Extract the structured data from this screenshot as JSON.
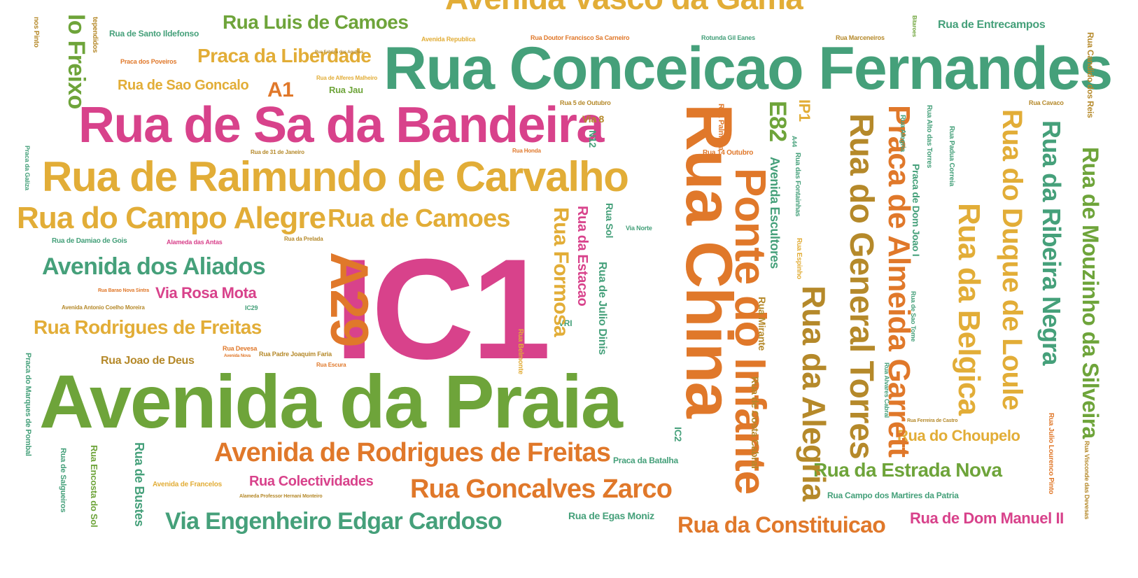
{
  "palette": {
    "green": "#45a07a",
    "lime": "#6ea43a",
    "pink": "#d8428b",
    "orange": "#e0782a",
    "yellow": "#e2ad37",
    "olive": "#b5892a"
  },
  "words": [
    {
      "text": "IC1",
      "color": "pink"
    },
    {
      "text": "Avenida da Praia",
      "color": "lime"
    },
    {
      "text": "Rua Conceicao Fernandes",
      "color": "green"
    },
    {
      "text": "Rua de Sa da Bandeira",
      "color": "pink"
    },
    {
      "text": "Rua de Raimundo de Carvalho",
      "color": "yellow"
    },
    {
      "text": "Rua do Campo Alegre",
      "color": "yellow"
    },
    {
      "text": "Rua de Camoes",
      "color": "yellow"
    },
    {
      "text": "Avenida dos Aliados",
      "color": "green"
    },
    {
      "text": "Rua Rodrigues de Freitas",
      "color": "yellow"
    },
    {
      "text": "Via Rosa Mota",
      "color": "pink"
    },
    {
      "text": "Avenida de Rodrigues de Freitas",
      "color": "orange"
    },
    {
      "text": "Rua Goncalves Zarco",
      "color": "orange"
    },
    {
      "text": "Via Engenheiro Edgar Cardoso",
      "color": "green"
    },
    {
      "text": "Rua Colectividades",
      "color": "pink"
    },
    {
      "text": "Praca da Liberdade",
      "color": "yellow"
    },
    {
      "text": "Rua Luis de Camoes",
      "color": "lime"
    },
    {
      "text": "Avenida Vasco da Gama",
      "color": "yellow"
    },
    {
      "text": "Rua de Sao Goncalo",
      "color": "yellow"
    },
    {
      "text": "A1",
      "color": "orange"
    },
    {
      "text": "Rua Jau",
      "color": "lime"
    },
    {
      "text": "Rua de Santo Ildefonso",
      "color": "green"
    },
    {
      "text": "Praca dos Poveiros",
      "color": "orange"
    },
    {
      "text": "Rua Joao de Deus",
      "color": "olive"
    },
    {
      "text": "Rua da Constituicao",
      "color": "orange"
    },
    {
      "text": "Rua de Egas Moniz",
      "color": "green"
    },
    {
      "text": "Praca da Batalha",
      "color": "green"
    },
    {
      "text": "Rua da Estrada Nova",
      "color": "lime"
    },
    {
      "text": "Rua Campo dos Martires da Patria",
      "color": "green"
    },
    {
      "text": "Rua de Dom Manuel II",
      "color": "pink"
    },
    {
      "text": "Rua do Choupelo",
      "color": "yellow"
    },
    {
      "text": "Rua de Entrecampos",
      "color": "green"
    },
    {
      "text": "Rua Marceneiros",
      "color": "olive"
    },
    {
      "text": "Rotunda Gil Eanes",
      "color": "green"
    },
    {
      "text": "Rua Doutor Francisco Sa Carneiro",
      "color": "orange"
    },
    {
      "text": "Alameda das Antas",
      "color": "pink"
    },
    {
      "text": "Rua de Damiao de Gois",
      "color": "green"
    },
    {
      "text": "Avenida de Francelos",
      "color": "yellow"
    },
    {
      "text": "Rua Devesa",
      "color": "orange"
    },
    {
      "text": "Rua Padre Joaquim Faria",
      "color": "olive"
    },
    {
      "text": "Via 8",
      "color": "olive"
    },
    {
      "text": "Rua 5 de Outubro",
      "color": "olive"
    },
    {
      "text": "Rua Cavaco",
      "color": "olive"
    },
    {
      "text": "Rua 14 Outubro",
      "color": "orange"
    },
    {
      "text": "Via Norte",
      "color": "green"
    },
    {
      "text": "VRI",
      "color": "green"
    },
    {
      "text": "IC29",
      "color": "green"
    },
    {
      "text": "Rua China",
      "color": "orange"
    },
    {
      "text": "Ponte do Infante",
      "color": "orange"
    },
    {
      "text": "Rua do General Torres",
      "color": "olive"
    },
    {
      "text": "Praca de Almeida Garrett",
      "color": "orange"
    },
    {
      "text": "Rua da Belgica",
      "color": "yellow"
    },
    {
      "text": "Rua do Duque de Loule",
      "color": "yellow"
    },
    {
      "text": "Rua da Ribeira Negra",
      "color": "green"
    },
    {
      "text": "Rua de Mouzinho da Silveira",
      "color": "lime"
    },
    {
      "text": "Rua da Alegria",
      "color": "olive"
    },
    {
      "text": "A29",
      "color": "orange"
    },
    {
      "text": "Rua Formosa",
      "color": "yellow"
    },
    {
      "text": "Rua da Estacao",
      "color": "pink"
    },
    {
      "text": "Rua de Julio Dinis",
      "color": "green"
    },
    {
      "text": "Rua Sol",
      "color": "green"
    },
    {
      "text": "Io Freixo",
      "color": "lime"
    },
    {
      "text": "E82",
      "color": "lime"
    },
    {
      "text": "IP1",
      "color": "yellow"
    },
    {
      "text": "Avenida Escultores",
      "color": "green"
    },
    {
      "text": "Rua de Costa Cabral",
      "color": "olive"
    },
    {
      "text": "Rua Mirante",
      "color": "olive"
    },
    {
      "text": "Praca de Dom Joao I",
      "color": "green"
    },
    {
      "text": "Rua Alegria",
      "color": "green"
    },
    {
      "text": "Rua Alto das Torres",
      "color": "green"
    },
    {
      "text": "Rua Padua Correia",
      "color": "green"
    },
    {
      "text": "Rua Palmeira",
      "color": "orange"
    },
    {
      "text": "Rua das Fontainhas",
      "color": "green"
    },
    {
      "text": "Rua Espinho",
      "color": "yellow"
    },
    {
      "text": "Rua de Busteѕ",
      "color": "green"
    },
    {
      "text": "Rua Encosta do Sol",
      "color": "lime"
    },
    {
      "text": "Rua de Salgueiros",
      "color": "green"
    },
    {
      "text": "Praca do Marques de Pombal",
      "color": "green"
    },
    {
      "text": "Praca da Galiza",
      "color": "green"
    },
    {
      "text": "Rua Candido dos Reis",
      "color": "olive"
    },
    {
      "text": "Rua Julio Lourenco Pinto",
      "color": "orange"
    },
    {
      "text": "Rua Visconde das Devesas",
      "color": "olive"
    },
    {
      "text": "Rua Belmonte",
      "color": "yellow"
    },
    {
      "text": "IC2",
      "color": "green"
    },
    {
      "text": "N12",
      "color": "green"
    },
    {
      "text": "A44",
      "color": "green"
    },
    {
      "text": "Rua Barao Nova Sintra",
      "color": "orange"
    },
    {
      "text": "Avenida Antonio Coelho Moreira",
      "color": "olive"
    },
    {
      "text": "Alameda Professor Hernani Monteiro",
      "color": "olive"
    },
    {
      "text": "Avenida Nova",
      "color": "orange"
    },
    {
      "text": "Rua Alvares Cabral",
      "color": "green"
    },
    {
      "text": "Rua de Sao Tome",
      "color": "green"
    },
    {
      "text": "Rua Ferreira de Castro",
      "color": "olive"
    },
    {
      "text": "Rua de 31 de Janeiro",
      "color": "olive"
    },
    {
      "text": "Rua Honda",
      "color": "orange"
    },
    {
      "text": "Rua da Prelada",
      "color": "olive"
    },
    {
      "text": "Rua Escura",
      "color": "orange"
    },
    {
      "text": "Rua de Alferes Malheiro",
      "color": "yellow"
    },
    {
      "text": "Rua Fabrica dos Agulhas",
      "color": "olive"
    },
    {
      "text": "Avenida Republica",
      "color": "yellow"
    },
    {
      "text": "tependidos",
      "color": "olive"
    },
    {
      "text": "nos Pinto",
      "color": "olive"
    },
    {
      "text": "Bitaroes",
      "color": "lime"
    }
  ]
}
